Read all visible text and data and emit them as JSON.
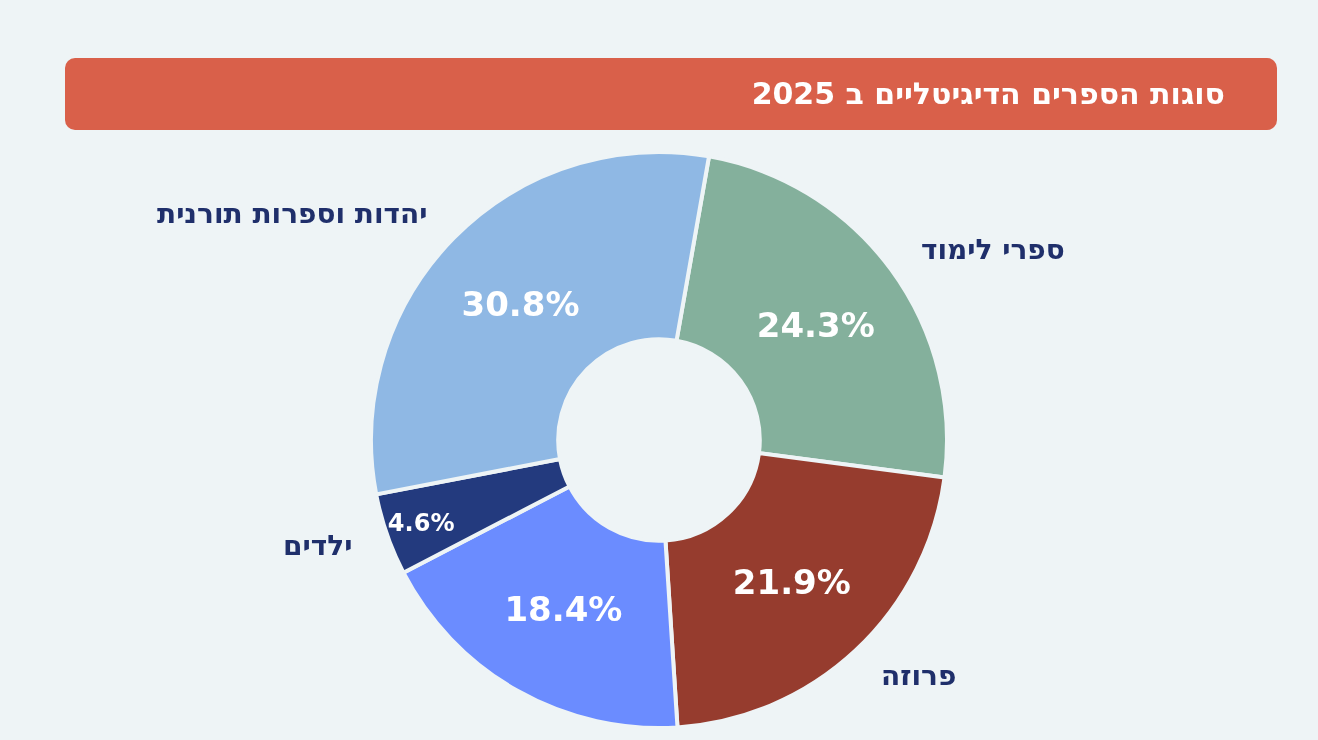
{
  "chart_data": {
    "type": "donut",
    "title": "סוגות הספרים הדיגיטליים ב 2025",
    "categories": [
      "ספרי לימוד",
      "פרוזה",
      null,
      "ילדים",
      "יהדות וספרות תורנית"
    ],
    "values": [
      24.3,
      21.9,
      18.4,
      4.6,
      30.8
    ],
    "colors": [
      "#84b09c",
      "#963c2e",
      "#6b8cff",
      "#233a7e",
      "#8fb8e4"
    ],
    "value_labels": [
      "24.3%",
      "21.9%",
      "18.4%",
      "4.6%",
      "30.8%"
    ]
  }
}
